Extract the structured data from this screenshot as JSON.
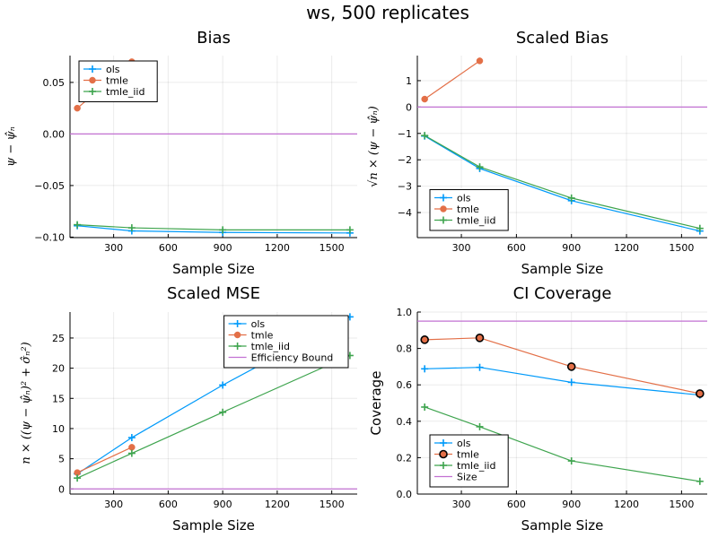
{
  "figure": {
    "title": "ws, 500 replicates"
  },
  "colors": {
    "ols": "#009AFA",
    "tmle": "#E36F47",
    "tmle_iid": "#3EA44E",
    "reference": "#C271D2"
  },
  "chart_data": [
    {
      "id": "bias",
      "type": "line",
      "title": "Bias",
      "xlabel": "Sample Size",
      "ylabel": "ψ − ψ̂ₙ",
      "x_ticks": [
        300,
        600,
        900,
        1200,
        1500
      ],
      "xlim": [
        60,
        1640
      ],
      "y_ticks": [
        -0.1,
        -0.05,
        0.0,
        0.05
      ],
      "y_tick_labels": [
        "−0.10",
        "−0.05",
        "0.00",
        "0.05"
      ],
      "ylim": [
        -0.1005,
        0.076
      ],
      "legend": "top-left",
      "series": [
        {
          "name": "ols",
          "marker": "cross",
          "x": [
            100,
            400,
            900,
            1600
          ],
          "y": [
            -0.089,
            -0.094,
            -0.0955,
            -0.096
          ]
        },
        {
          "name": "tmle",
          "marker": "circle",
          "x": [
            100,
            400
          ],
          "y": [
            0.025,
            0.07
          ]
        },
        {
          "name": "tmle_iid",
          "marker": "cross",
          "x": [
            100,
            400,
            900,
            1600
          ],
          "y": [
            -0.088,
            -0.091,
            -0.093,
            -0.093
          ]
        }
      ],
      "hlines": [
        {
          "y": 0.0,
          "name": ""
        }
      ]
    },
    {
      "id": "scaled-bias",
      "type": "line",
      "title": "Scaled Bias",
      "xlabel": "Sample Size",
      "ylabel": "√n × (ψ − ψ̂ₙ)",
      "x_ticks": [
        300,
        600,
        900,
        1200,
        1500
      ],
      "xlim": [
        60,
        1640
      ],
      "y_ticks": [
        -4,
        -3,
        -2,
        -1,
        0,
        1
      ],
      "y_tick_labels": [
        "−4",
        "−3",
        "−2",
        "−1",
        "0",
        "1"
      ],
      "ylim": [
        -4.95,
        1.95
      ],
      "legend": "bottom-left",
      "series": [
        {
          "name": "ols",
          "marker": "cross",
          "x": [
            100,
            400,
            900,
            1600
          ],
          "y": [
            -1.1,
            -2.33,
            -3.55,
            -4.7
          ]
        },
        {
          "name": "tmle",
          "marker": "circle",
          "x": [
            100,
            400
          ],
          "y": [
            0.3,
            1.75
          ]
        },
        {
          "name": "tmle_iid",
          "marker": "cross",
          "x": [
            100,
            400,
            900,
            1600
          ],
          "y": [
            -1.08,
            -2.27,
            -3.45,
            -4.6
          ]
        }
      ],
      "hlines": [
        {
          "y": 0.0,
          "name": ""
        }
      ]
    },
    {
      "id": "scaled-mse",
      "type": "line",
      "title": "Scaled MSE",
      "xlabel": "Sample Size",
      "ylabel": "n × ((ψ − ψ̂ₙ)² + σ̂ₙ²)",
      "x_ticks": [
        300,
        600,
        900,
        1200,
        1500
      ],
      "xlim": [
        60,
        1640
      ],
      "y_ticks": [
        0,
        5,
        10,
        15,
        20,
        25
      ],
      "y_tick_labels": [
        "0",
        "5",
        "10",
        "15",
        "20",
        "25"
      ],
      "ylim": [
        -0.85,
        29.3
      ],
      "legend": "top-right",
      "series": [
        {
          "name": "ols",
          "marker": "cross",
          "x": [
            100,
            400,
            900,
            1600
          ],
          "y": [
            2.5,
            8.5,
            17.2,
            28.5
          ]
        },
        {
          "name": "tmle",
          "marker": "circle",
          "x": [
            100,
            400
          ],
          "y": [
            2.7,
            6.9
          ]
        },
        {
          "name": "tmle_iid",
          "marker": "cross",
          "x": [
            100,
            400,
            900,
            1600
          ],
          "y": [
            1.8,
            5.9,
            12.7,
            22.1
          ]
        }
      ],
      "hlines": [
        {
          "y": 0.0,
          "name": "Efficiency Bound"
        }
      ]
    },
    {
      "id": "ci-coverage",
      "type": "line",
      "title": "CI Coverage",
      "xlabel": "Sample Size",
      "ylabel": "Coverage",
      "x_ticks": [
        300,
        600,
        900,
        1200,
        1500
      ],
      "xlim": [
        60,
        1640
      ],
      "y_ticks": [
        0.0,
        0.2,
        0.4,
        0.6,
        0.8,
        1.0
      ],
      "y_tick_labels": [
        "0.0",
        "0.2",
        "0.4",
        "0.6",
        "0.8",
        "1.0"
      ],
      "ylim": [
        0.0,
        1.0
      ],
      "legend": "bottom-left",
      "series": [
        {
          "name": "ols",
          "marker": "cross",
          "x": [
            100,
            400,
            900,
            1600
          ],
          "y": [
            0.688,
            0.696,
            0.614,
            0.544
          ]
        },
        {
          "name": "tmle",
          "marker": "circle-outline",
          "x": [
            100,
            400,
            900,
            1600
          ],
          "y": [
            0.848,
            0.858,
            0.7,
            0.552
          ]
        },
        {
          "name": "tmle_iid",
          "marker": "cross",
          "x": [
            100,
            400,
            900,
            1600
          ],
          "y": [
            0.478,
            0.37,
            0.182,
            0.07
          ]
        }
      ],
      "hlines": [
        {
          "y": 0.95,
          "name": "Size"
        }
      ]
    }
  ]
}
